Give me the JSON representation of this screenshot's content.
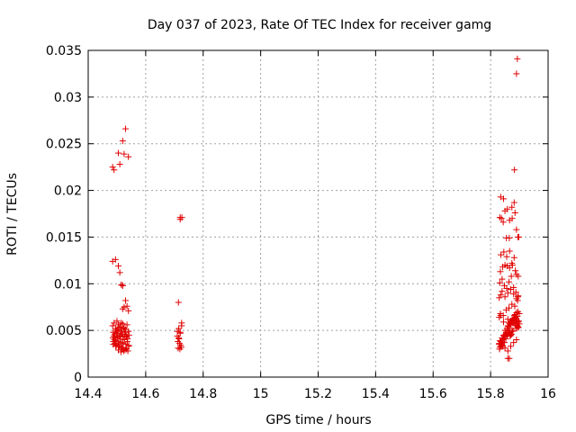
{
  "chart_data": {
    "type": "scatter",
    "title": "Day 037 of 2023, Rate Of TEC Index for receiver gamg",
    "xlabel": "GPS time / hours",
    "ylabel": "ROTI / TECUs",
    "xlim": [
      14.4,
      16
    ],
    "ylim": [
      0,
      0.035
    ],
    "xticks": [
      14.4,
      14.6,
      14.8,
      15,
      15.2,
      15.4,
      15.6,
      15.8,
      16
    ],
    "xtick_labels": [
      "14.4",
      "14.6",
      "14.8",
      "15",
      "15.2",
      "15.4",
      "15.6",
      "15.8",
      "16"
    ],
    "yticks": [
      0,
      0.005,
      0.01,
      0.015,
      0.02,
      0.025,
      0.03,
      0.035
    ],
    "ytick_labels": [
      "0",
      "0.005",
      "0.01",
      "0.015",
      "0.02",
      "0.025",
      "0.03",
      "0.035"
    ],
    "grid": true,
    "marker": "plus",
    "color": "#e00000",
    "series": [
      {
        "x": [
          14.485,
          14.49,
          14.495,
          14.5,
          14.505,
          14.51,
          14.515,
          14.52,
          14.525,
          14.53,
          14.535,
          14.54,
          14.487,
          14.492,
          14.497,
          14.502,
          14.507,
          14.512,
          14.517,
          14.522,
          14.527,
          14.532,
          14.537,
          14.542,
          14.486,
          14.491,
          14.496,
          14.501,
          14.506,
          14.511,
          14.516,
          14.521,
          14.526,
          14.531,
          14.536,
          14.541,
          14.488,
          14.493,
          14.498,
          14.503,
          14.508,
          14.513,
          14.518,
          14.523,
          14.528,
          14.533,
          14.538,
          14.489,
          14.494,
          14.499,
          14.504,
          14.509,
          14.514,
          14.519,
          14.524,
          14.529,
          14.534,
          14.487,
          14.496,
          14.505,
          14.514,
          14.523,
          14.532,
          14.541,
          14.52,
          14.525,
          14.52,
          14.53,
          14.535,
          14.54,
          14.485,
          14.495,
          14.505,
          14.51,
          14.515,
          14.52,
          14.485,
          14.49,
          14.505,
          14.51,
          14.52,
          14.525,
          14.53,
          14.54
        ],
        "y": [
          0.0055,
          0.0058,
          0.0052,
          0.006,
          0.0056,
          0.0054,
          0.0058,
          0.0057,
          0.0053,
          0.0051,
          0.0056,
          0.0049,
          0.0048,
          0.0046,
          0.005,
          0.0047,
          0.0044,
          0.0045,
          0.0049,
          0.0043,
          0.0046,
          0.0044,
          0.0041,
          0.0045,
          0.0042,
          0.004,
          0.0039,
          0.0043,
          0.0038,
          0.0041,
          0.0037,
          0.0036,
          0.004,
          0.0035,
          0.0038,
          0.0034,
          0.0038,
          0.0036,
          0.0034,
          0.0035,
          0.0033,
          0.0032,
          0.0031,
          0.003,
          0.0029,
          0.003,
          0.0028,
          0.0044,
          0.0042,
          0.0047,
          0.0051,
          0.0053,
          0.0049,
          0.0046,
          0.0052,
          0.0048,
          0.0043,
          0.0035,
          0.0033,
          0.0029,
          0.0027,
          0.0028,
          0.0031,
          0.0033,
          0.0073,
          0.0075,
          0.0098,
          0.0082,
          0.0076,
          0.0071,
          0.0124,
          0.0126,
          0.0119,
          0.0112,
          0.0099,
          0.0098,
          0.0225,
          0.0222,
          0.024,
          0.0228,
          0.0253,
          0.0239,
          0.0266,
          0.0236
        ]
      },
      {
        "x": [
          14.71,
          14.715,
          14.72,
          14.725,
          14.71,
          14.715,
          14.72,
          14.725,
          14.712,
          14.718,
          14.722,
          14.713,
          14.719,
          14.724,
          14.716,
          14.714,
          14.72,
          14.72,
          14.726
        ],
        "y": [
          0.0049,
          0.0052,
          0.0047,
          0.0055,
          0.0044,
          0.0042,
          0.0048,
          0.0058,
          0.0038,
          0.0036,
          0.0034,
          0.0031,
          0.003,
          0.0032,
          0.0041,
          0.008,
          0.0169,
          0.0171,
          0.0171
        ],
        "_note": "cluster near 14.72 h"
      },
      {
        "x": [
          15.83,
          15.835,
          15.84,
          15.845,
          15.85,
          15.855,
          15.86,
          15.865,
          15.87,
          15.875,
          15.88,
          15.885,
          15.89,
          15.895,
          15.9,
          15.832,
          15.837,
          15.842,
          15.847,
          15.852,
          15.857,
          15.862,
          15.867,
          15.872,
          15.877,
          15.882,
          15.887,
          15.892,
          15.897,
          15.831,
          15.836,
          15.841,
          15.846,
          15.851,
          15.856,
          15.861,
          15.866,
          15.871,
          15.876,
          15.881,
          15.886,
          15.891,
          15.896,
          15.833,
          15.838,
          15.843,
          15.848,
          15.853,
          15.858,
          15.863,
          15.868,
          15.873,
          15.878,
          15.883,
          15.888,
          15.893,
          15.898,
          15.834,
          15.844,
          15.854,
          15.864,
          15.874,
          15.884,
          15.894,
          15.83,
          15.835,
          15.84,
          15.85,
          15.86,
          15.87,
          15.88,
          15.89,
          15.895,
          15.832,
          15.84,
          15.848,
          15.856,
          15.864,
          15.872,
          15.88,
          15.888,
          15.896,
          15.834,
          15.842,
          15.85,
          15.858,
          15.866,
          15.874,
          15.882,
          15.89,
          15.836,
          15.846,
          15.856,
          15.866,
          15.876,
          15.886,
          15.896,
          15.832,
          15.838,
          15.844,
          15.85,
          15.858,
          15.866,
          15.874,
          15.882,
          15.89,
          15.898,
          15.835,
          15.845,
          15.855,
          15.865,
          15.875,
          15.885,
          15.895,
          15.83,
          15.84,
          15.85,
          15.86,
          15.87,
          15.88,
          15.89,
          15.83,
          15.835,
          15.845,
          15.86,
          15.865,
          15.87,
          15.875,
          15.88,
          15.885,
          15.89,
          15.895,
          15.9,
          15.86,
          15.865,
          15.883,
          15.89,
          15.893
        ],
        "y": [
          0.0035,
          0.0038,
          0.0042,
          0.0045,
          0.005,
          0.0048,
          0.0055,
          0.0058,
          0.006,
          0.0062,
          0.0058,
          0.0056,
          0.0052,
          0.0054,
          0.0057,
          0.0032,
          0.0036,
          0.004,
          0.0044,
          0.0046,
          0.0052,
          0.0054,
          0.0057,
          0.0059,
          0.0061,
          0.006,
          0.0058,
          0.0055,
          0.0053,
          0.003,
          0.0033,
          0.0037,
          0.0041,
          0.0043,
          0.0047,
          0.005,
          0.0052,
          0.0056,
          0.0058,
          0.0062,
          0.0064,
          0.0061,
          0.0059,
          0.0039,
          0.0035,
          0.0033,
          0.0037,
          0.0041,
          0.0045,
          0.0048,
          0.0044,
          0.0046,
          0.005,
          0.0066,
          0.0063,
          0.0065,
          0.006,
          0.0068,
          0.0066,
          0.0072,
          0.0074,
          0.0078,
          0.0076,
          0.0082,
          0.0085,
          0.0088,
          0.0092,
          0.0086,
          0.009,
          0.0094,
          0.0089,
          0.0084,
          0.0086,
          0.0101,
          0.0105,
          0.0098,
          0.0095,
          0.0102,
          0.0108,
          0.0096,
          0.0091,
          0.0087,
          0.0113,
          0.0118,
          0.012,
          0.0119,
          0.0117,
          0.0122,
          0.0128,
          0.011,
          0.0131,
          0.0134,
          0.0129,
          0.0135,
          0.012,
          0.0114,
          0.0108,
          0.0171,
          0.017,
          0.0166,
          0.0178,
          0.018,
          0.0168,
          0.0182,
          0.0187,
          0.0158,
          0.015,
          0.0193,
          0.0191,
          0.0149,
          0.0149,
          0.017,
          0.0176,
          0.015,
          0.0036,
          0.0034,
          0.0031,
          0.0028,
          0.0033,
          0.0037,
          0.004,
          0.0064,
          0.0066,
          0.0059,
          0.0062,
          0.0047,
          0.0045,
          0.0049,
          0.0063,
          0.0067,
          0.0069,
          0.007,
          0.0068,
          0.002,
          0.002,
          0.0222,
          0.0325,
          0.0341
        ]
      }
    ]
  }
}
